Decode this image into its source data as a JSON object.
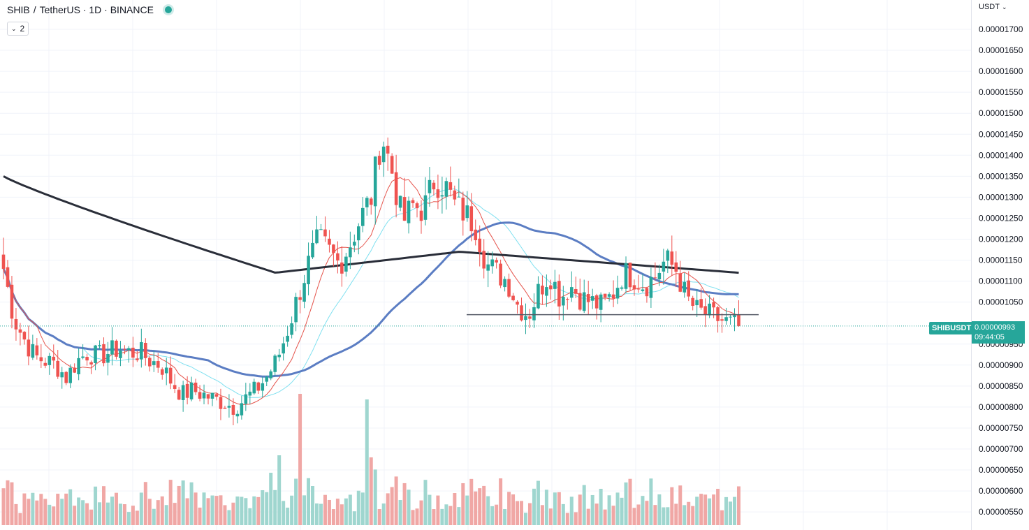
{
  "header": {
    "symbol": "SHIB",
    "pair_sep": "/",
    "quote_exchange": "TetherUS · 1D · BINANCE",
    "status_color": "#26a69a",
    "collapse_count": "2"
  },
  "price_axis": {
    "currency": "USDT",
    "labels": [
      "0.00001700",
      "0.00001650",
      "0.00001600",
      "0.00001550",
      "0.00001500",
      "0.00001450",
      "0.00001400",
      "0.00001350",
      "0.00001300",
      "0.00001250",
      "0.00001200",
      "0.00001150",
      "0.00001100",
      "0.00001050",
      "0.00000950",
      "0.00000900",
      "0.00000850",
      "0.00000800",
      "0.00000750",
      "0.00000700",
      "0.00000650",
      "0.00000600",
      "0.00000550"
    ]
  },
  "last_price": {
    "symbol": "SHIBUSDT",
    "value": "0.00000993",
    "countdown": "09:44:05"
  },
  "colors": {
    "up": "#26a69a",
    "down": "#ef5350",
    "vol_up": "#9fd6cf",
    "vol_down": "#f0a7a5",
    "ma_black": "#2a2e39",
    "ma_blue": "#5b7dc3",
    "ma_cyan": "#7fe0f0",
    "ma_red": "#e5534b",
    "support_line": "#555a66"
  },
  "chart_data": {
    "type": "candlestick",
    "timeframe": "1D",
    "ylim": [
      5.2e-06,
      1.74e-05
    ],
    "support_level": 1.02e-05,
    "candles_close_path": [
      1.13e-05,
      1.01e-05,
      9.6e-06,
      9.2e-06,
      9.1e-06,
      9e-06,
      8.7e-06,
      9.1e-06,
      9.3e-06,
      9.2e-06,
      9.3e-06,
      9.4e-06,
      9.3e-06,
      9.3e-06,
      9.1e-06,
      9e-06,
      8.6e-06,
      8.3e-06,
      8.4e-06,
      8.3e-06,
      8.2e-06,
      8.1e-06,
      8e-06,
      8.2e-06,
      8.4e-06,
      8.7e-06,
      9.1e-06,
      9.8e-06,
      1.06e-05,
      1.14e-05,
      1.2e-05,
      1.17e-05,
      1.14e-05,
      1.19e-05,
      1.25e-05,
      1.3e-05,
      1.45e-05,
      1.36e-05,
      1.24e-05,
      1.28e-05,
      1.27e-05,
      1.34e-05,
      1.33e-05,
      1.28e-05,
      1.26e-05,
      1.23e-05,
      1.14e-05,
      1.12e-05,
      1.1e-05,
      1.04e-05,
      1.02e-05,
      1.08e-05,
      1.12e-05,
      1.06e-05,
      1.09e-05,
      1.06e-05,
      1.05e-05,
      1.04e-05,
      1.07e-05,
      1.12e-05,
      1.11e-05,
      1.09e-05,
      1.11e-05,
      1.15e-05,
      1.13e-05,
      1.06e-05,
      1.03e-05,
      1.02e-05,
      1.01e-05,
      1e-05,
      9.9e-06
    ],
    "volume_scale_note": "relative"
  }
}
